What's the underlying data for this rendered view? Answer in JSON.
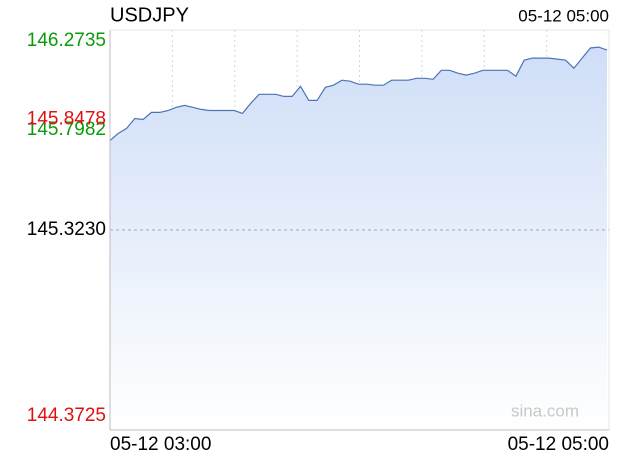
{
  "chart_data": {
    "type": "area-line",
    "title": "USDJPY",
    "timestamp": "05-12 05:00",
    "watermark": "sina.com",
    "xlabels": [
      "05-12 03:00",
      "05-12 05:00"
    ],
    "values": [
      145.748,
      145.782,
      145.806,
      145.853,
      145.848,
      145.882,
      145.882,
      145.891,
      145.906,
      145.915,
      145.906,
      145.896,
      145.891,
      145.891,
      145.891,
      145.891,
      145.877,
      145.925,
      145.968,
      145.968,
      145.968,
      145.958,
      145.958,
      146.006,
      145.939,
      145.939,
      146.001,
      146.011,
      146.035,
      146.03,
      146.016,
      146.016,
      146.011,
      146.011,
      146.035,
      146.035,
      146.035,
      146.044,
      146.044,
      146.039,
      146.082,
      146.082,
      146.068,
      146.059,
      146.068,
      146.082,
      146.082,
      146.082,
      146.082,
      146.054,
      146.13,
      146.14,
      146.14,
      146.14,
      146.135,
      146.13,
      146.092,
      146.14,
      146.188,
      146.192,
      146.178
    ],
    "color": "#4d74b8",
    "ylim": [
      144.3725,
      146.2735
    ],
    "yticks": [
      146.2735,
      145.7982,
      {
        "value": 145.323,
        "label": "145.3230"
      },
      145.8478,
      144.3725
    ],
    "ytick_colors": [
      "#0a9a0a",
      "#0a9a0a",
      "#000000",
      "#e01010",
      "#e01010"
    ],
    "grid": true
  }
}
